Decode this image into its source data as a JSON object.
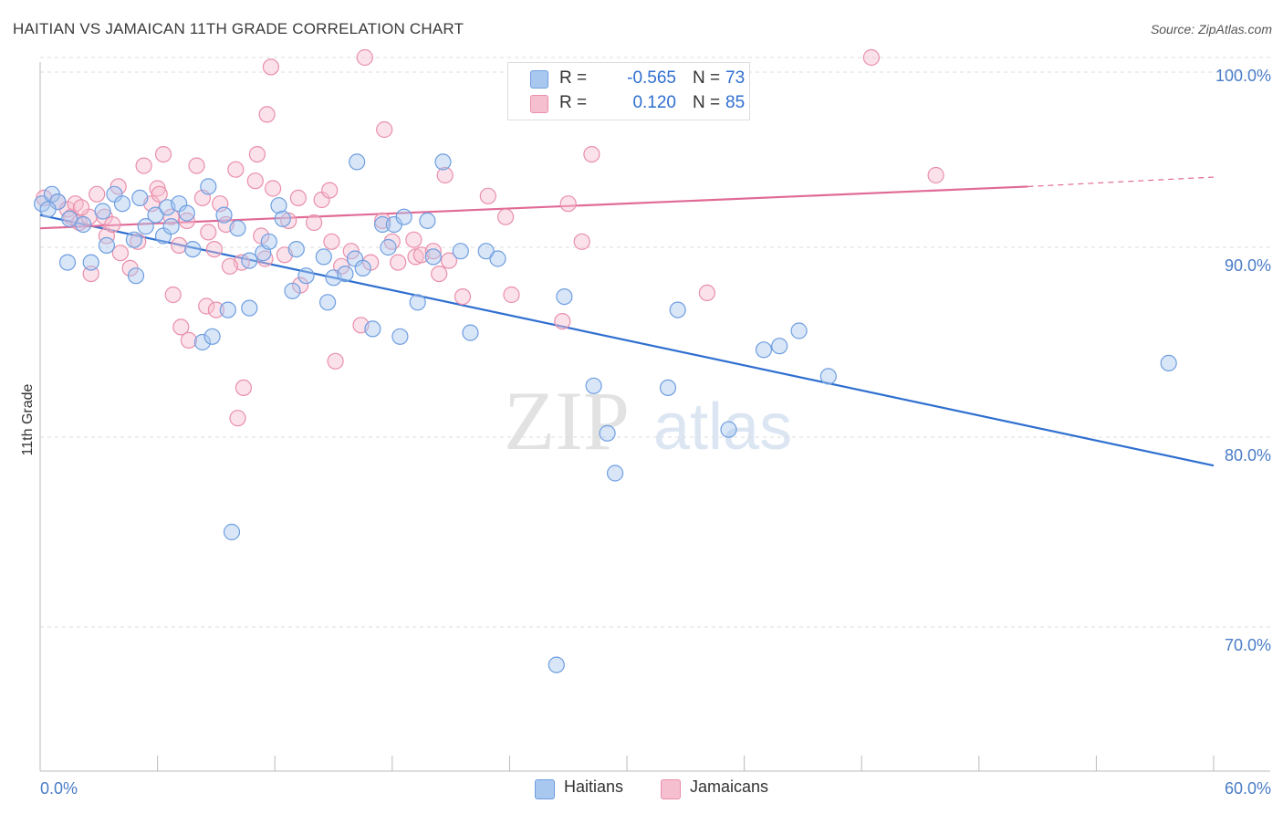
{
  "header": {
    "title": "HAITIAN VS JAMAICAN 11TH GRADE CORRELATION CHART",
    "source": "Source: ZipAtlas.com"
  },
  "legend": {
    "haitian": {
      "r_label": "R =",
      "r_value": "-0.565",
      "n_label": "N =",
      "n_value": "73"
    },
    "jamaican": {
      "r_label": "R =",
      "r_value": "0.120",
      "n_label": "N =",
      "n_value": "85"
    }
  },
  "bottom_legend": {
    "haitian": "Haitians",
    "jamaican": "Jamaicans"
  },
  "colors": {
    "haitian_fill": "#a9c8f0",
    "haitian_stroke": "#6f9ee0",
    "haitian_line": "#2f6fd0",
    "jamaican_fill": "#f6bfd0",
    "jamaican_stroke": "#e98fab",
    "jamaican_line": "#e06a96",
    "grid": "#dddddd",
    "tick_text": "#4a7cc7"
  },
  "chart_data": {
    "type": "scatter",
    "title": "HAITIAN VS JAMAICAN 11TH GRADE CORRELATION CHART",
    "xlabel": "",
    "ylabel": "11th Grade",
    "xlim": [
      0,
      60
    ],
    "ylim": [
      60,
      103
    ],
    "x_tick_labels": [
      "0.0%",
      "60.0%"
    ],
    "y_ticks": [
      70,
      80,
      90,
      100
    ],
    "y_tick_labels": [
      "70.0%",
      "80.0%",
      "90.0%",
      "100.0%"
    ],
    "grid": true,
    "legend_position": "top-center",
    "watermark": "ZIPatlas",
    "series": [
      {
        "name": "Haitians",
        "r": -0.565,
        "n": 73,
        "trend": {
          "x": [
            0,
            60
          ],
          "y": [
            91.7,
            78.5
          ]
        },
        "points": [
          [
            0.1,
            92.3
          ],
          [
            0.6,
            92.8
          ],
          [
            0.9,
            92.4
          ],
          [
            1.5,
            91.5
          ],
          [
            2.2,
            91.2
          ],
          [
            1.4,
            89.2
          ],
          [
            2.6,
            89.2
          ],
          [
            3.2,
            91.9
          ],
          [
            3.8,
            92.8
          ],
          [
            4.2,
            92.3
          ],
          [
            3.4,
            90.1
          ],
          [
            4.8,
            90.4
          ],
          [
            4.9,
            88.5
          ],
          [
            5.1,
            92.6
          ],
          [
            5.4,
            91.1
          ],
          [
            5.9,
            91.7
          ],
          [
            6.3,
            90.6
          ],
          [
            6.5,
            92.1
          ],
          [
            6.7,
            91.1
          ],
          [
            7.1,
            92.3
          ],
          [
            7.5,
            91.8
          ],
          [
            7.8,
            89.9
          ],
          [
            8.6,
            93.2
          ],
          [
            9.4,
            91.7
          ],
          [
            10.1,
            91.0
          ],
          [
            8.3,
            85.0
          ],
          [
            8.8,
            85.3
          ],
          [
            9.6,
            86.7
          ],
          [
            10.7,
            89.3
          ],
          [
            11.4,
            89.7
          ],
          [
            11.7,
            90.3
          ],
          [
            12.2,
            92.2
          ],
          [
            12.4,
            91.5
          ],
          [
            12.9,
            87.7
          ],
          [
            13.1,
            89.9
          ],
          [
            13.6,
            88.5
          ],
          [
            14.5,
            89.5
          ],
          [
            14.7,
            87.1
          ],
          [
            15.0,
            88.4
          ],
          [
            15.6,
            88.6
          ],
          [
            16.1,
            89.4
          ],
          [
            16.5,
            88.9
          ],
          [
            16.2,
            94.5
          ],
          [
            17.0,
            85.7
          ],
          [
            17.5,
            91.2
          ],
          [
            17.8,
            90.0
          ],
          [
            18.1,
            91.2
          ],
          [
            18.4,
            85.3
          ],
          [
            18.6,
            91.6
          ],
          [
            19.3,
            87.1
          ],
          [
            19.8,
            91.4
          ],
          [
            20.1,
            89.5
          ],
          [
            20.6,
            94.5
          ],
          [
            21.5,
            89.8
          ],
          [
            22.0,
            85.5
          ],
          [
            22.8,
            89.8
          ],
          [
            23.4,
            89.4
          ],
          [
            10.7,
            86.8
          ],
          [
            9.8,
            75.0
          ],
          [
            26.4,
            68.0
          ],
          [
            26.8,
            87.4
          ],
          [
            28.3,
            82.7
          ],
          [
            29.0,
            80.2
          ],
          [
            29.4,
            78.1
          ],
          [
            32.1,
            82.6
          ],
          [
            32.6,
            86.7
          ],
          [
            35.2,
            80.4
          ],
          [
            37.0,
            84.6
          ],
          [
            37.8,
            84.8
          ],
          [
            38.8,
            85.6
          ],
          [
            40.3,
            83.2
          ],
          [
            57.7,
            83.9
          ],
          [
            0.4,
            92.0
          ]
        ]
      },
      {
        "name": "Jamaicans",
        "r": 0.12,
        "n": 85,
        "trend": {
          "x": [
            0,
            50.5
          ],
          "y": [
            91.0,
            93.2
          ]
        },
        "trend_dashed": {
          "x": [
            50.5,
            60
          ],
          "y": [
            93.2,
            93.7
          ]
        },
        "points": [
          [
            0.2,
            92.6
          ],
          [
            0.9,
            92.4
          ],
          [
            1.4,
            92.0
          ],
          [
            1.6,
            91.6
          ],
          [
            2.0,
            91.3
          ],
          [
            2.5,
            91.6
          ],
          [
            1.8,
            92.3
          ],
          [
            2.1,
            92.1
          ],
          [
            2.9,
            92.8
          ],
          [
            3.3,
            91.6
          ],
          [
            2.6,
            88.6
          ],
          [
            3.4,
            90.6
          ],
          [
            3.7,
            91.2
          ],
          [
            4.1,
            89.7
          ],
          [
            4.6,
            88.9
          ],
          [
            5.0,
            90.3
          ],
          [
            5.3,
            94.3
          ],
          [
            5.7,
            92.3
          ],
          [
            6.0,
            93.1
          ],
          [
            6.3,
            94.9
          ],
          [
            6.7,
            91.6
          ],
          [
            7.1,
            90.1
          ],
          [
            7.5,
            91.4
          ],
          [
            8.0,
            94.3
          ],
          [
            8.3,
            92.6
          ],
          [
            8.6,
            90.8
          ],
          [
            8.9,
            89.9
          ],
          [
            6.8,
            87.5
          ],
          [
            7.2,
            85.8
          ],
          [
            7.6,
            85.1
          ],
          [
            8.5,
            86.9
          ],
          [
            9.0,
            86.7
          ],
          [
            9.2,
            92.3
          ],
          [
            9.5,
            91.2
          ],
          [
            10.0,
            94.1
          ],
          [
            10.3,
            89.2
          ],
          [
            11.1,
            94.9
          ],
          [
            11.3,
            90.6
          ],
          [
            11.5,
            89.4
          ],
          [
            11.9,
            93.1
          ],
          [
            11.6,
            97.0
          ],
          [
            11.8,
            99.5
          ],
          [
            12.7,
            91.4
          ],
          [
            13.3,
            88.0
          ],
          [
            14.0,
            91.3
          ],
          [
            14.4,
            92.5
          ],
          [
            14.9,
            90.3
          ],
          [
            15.4,
            89.0
          ],
          [
            15.1,
            84.0
          ],
          [
            15.9,
            89.8
          ],
          [
            16.4,
            85.9
          ],
          [
            16.9,
            89.2
          ],
          [
            17.5,
            91.4
          ],
          [
            16.6,
            100.0
          ],
          [
            17.6,
            96.2
          ],
          [
            18.0,
            90.3
          ],
          [
            18.3,
            89.2
          ],
          [
            19.2,
            89.5
          ],
          [
            19.5,
            89.6
          ],
          [
            20.1,
            89.8
          ],
          [
            20.4,
            88.6
          ],
          [
            20.9,
            89.3
          ],
          [
            20.7,
            93.8
          ],
          [
            21.6,
            87.4
          ],
          [
            22.9,
            92.7
          ],
          [
            23.8,
            91.6
          ],
          [
            24.1,
            87.5
          ],
          [
            26.7,
            86.1
          ],
          [
            27.0,
            92.3
          ],
          [
            27.7,
            90.3
          ],
          [
            28.2,
            94.9
          ],
          [
            10.4,
            82.6
          ],
          [
            10.1,
            81.0
          ],
          [
            34.1,
            87.6
          ],
          [
            42.5,
            100.0
          ],
          [
            45.8,
            93.8
          ],
          [
            11.0,
            93.5
          ],
          [
            12.5,
            89.6
          ],
          [
            9.7,
            89.0
          ],
          [
            14.8,
            93.0
          ],
          [
            13.2,
            92.6
          ],
          [
            19.1,
            90.4
          ],
          [
            6.1,
            92.8
          ],
          [
            4.0,
            93.2
          ],
          [
            29.0,
            98.4
          ]
        ]
      }
    ]
  }
}
